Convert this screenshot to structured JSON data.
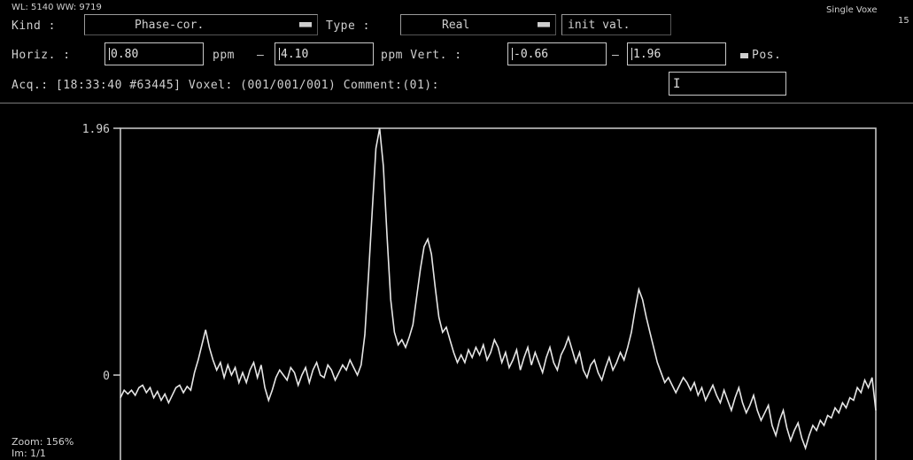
{
  "header": {
    "wl_ww": "WL: 5140 WW: 9719",
    "mode": "Single Voxe",
    "mode_num": "15"
  },
  "controls": {
    "kind_label": "Kind :",
    "kind_value": "Phase-cor.",
    "type_label": "Type :",
    "type_value": "Real",
    "init_button": "init val.",
    "horiz_label": "Horiz. :",
    "horiz_from": "0.80",
    "ppm1": "ppm",
    "dash1": "–",
    "horiz_to": "4.10",
    "ppm_vert_label": "ppm Vert. :",
    "vert_from": "-0.66",
    "dash2": "–",
    "vert_to": "1.96",
    "pos_label": "Pos.",
    "acq_text": "Acq.: [18:33:40 #63445] Voxel: (001/001/001) Comment:(01):",
    "comment_value": ""
  },
  "plot": {
    "y_top_label": "1.96",
    "y_zero_label": "0"
  },
  "footer": {
    "zoom": "Zoom: 156%",
    "im": "Im: 1/1"
  },
  "chart_data": {
    "type": "line",
    "xlim": [
      0.8,
      4.1
    ],
    "ylim": [
      -0.66,
      1.96
    ],
    "series": [
      {
        "values": [
          -0.18,
          -0.12,
          -0.15,
          -0.12,
          -0.16,
          -0.1,
          -0.08,
          -0.14,
          -0.1,
          -0.18,
          -0.13,
          -0.2,
          -0.15,
          -0.22,
          -0.16,
          -0.1,
          -0.08,
          -0.14,
          -0.09,
          -0.12,
          0.02,
          0.12,
          0.24,
          0.36,
          0.22,
          0.12,
          0.04,
          0.1,
          -0.02,
          0.08,
          0.0,
          0.06,
          -0.06,
          0.02,
          -0.06,
          0.04,
          0.1,
          -0.02,
          0.08,
          -0.1,
          -0.2,
          -0.12,
          -0.02,
          0.04,
          0.0,
          -0.04,
          0.06,
          0.02,
          -0.08,
          0.0,
          0.06,
          -0.06,
          0.04,
          0.1,
          0.0,
          -0.02,
          0.08,
          0.04,
          -0.04,
          0.02,
          0.08,
          0.04,
          0.12,
          0.06,
          0.0,
          0.08,
          0.32,
          0.8,
          1.3,
          1.8,
          1.96,
          1.66,
          1.1,
          0.6,
          0.34,
          0.24,
          0.28,
          0.22,
          0.3,
          0.4,
          0.62,
          0.84,
          1.02,
          1.08,
          0.96,
          0.7,
          0.46,
          0.34,
          0.38,
          0.28,
          0.18,
          0.1,
          0.16,
          0.1,
          0.2,
          0.14,
          0.22,
          0.16,
          0.24,
          0.12,
          0.18,
          0.28,
          0.22,
          0.1,
          0.18,
          0.06,
          0.12,
          0.2,
          0.04,
          0.14,
          0.22,
          0.08,
          0.18,
          0.1,
          0.02,
          0.14,
          0.22,
          0.1,
          0.04,
          0.16,
          0.22,
          0.3,
          0.2,
          0.1,
          0.18,
          0.04,
          -0.02,
          0.08,
          0.12,
          0.02,
          -0.04,
          0.06,
          0.14,
          0.04,
          0.1,
          0.18,
          0.12,
          0.22,
          0.34,
          0.52,
          0.68,
          0.6,
          0.46,
          0.34,
          0.22,
          0.1,
          0.02,
          -0.06,
          -0.02,
          -0.08,
          -0.14,
          -0.08,
          -0.02,
          -0.06,
          -0.12,
          -0.06,
          -0.16,
          -0.1,
          -0.2,
          -0.14,
          -0.08,
          -0.16,
          -0.22,
          -0.12,
          -0.2,
          -0.28,
          -0.18,
          -0.1,
          -0.22,
          -0.3,
          -0.24,
          -0.16,
          -0.28,
          -0.36,
          -0.3,
          -0.24,
          -0.4,
          -0.48,
          -0.36,
          -0.28,
          -0.42,
          -0.52,
          -0.44,
          -0.38,
          -0.5,
          -0.58,
          -0.48,
          -0.4,
          -0.44,
          -0.36,
          -0.4,
          -0.32,
          -0.34,
          -0.26,
          -0.3,
          -0.22,
          -0.26,
          -0.18,
          -0.2,
          -0.1,
          -0.14,
          -0.04,
          -0.1,
          -0.02,
          -0.28
        ]
      }
    ]
  }
}
